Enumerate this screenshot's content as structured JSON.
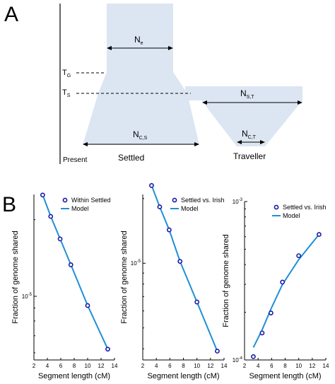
{
  "panel_a": {
    "letter": "A",
    "labels": {
      "ne": {
        "main": "N",
        "sub": "e"
      },
      "tg": {
        "main": "T",
        "sub": "G"
      },
      "ts": {
        "main": "T",
        "sub": "S"
      },
      "nst": {
        "main": "N",
        "sub": "S,T"
      },
      "ncs": {
        "main": "N",
        "sub": "C,S"
      },
      "nct": {
        "main": "N",
        "sub": "C,T"
      },
      "present": "Present",
      "settled": "Settled",
      "traveller": "Traveller"
    },
    "colors": {
      "fill": "#dce6f2",
      "line": "#000000"
    }
  },
  "panel_b": {
    "letter": "B"
  },
  "chart_data": [
    {
      "type": "scatter",
      "title": "",
      "xlabel": "Segment length (cM)",
      "ylabel": "Fraction of genome shared",
      "xlim": [
        2,
        14
      ],
      "xticks": [
        2,
        4,
        6,
        8,
        10,
        12,
        14
      ],
      "yscale": "log",
      "yticks": [
        {
          "value": 1e-05,
          "base": "10",
          "exp": "-5"
        }
      ],
      "ylim_log10": [
        -5.25,
        -4.6
      ],
      "series": [
        {
          "name": "Within Settled",
          "kind": "points",
          "x": [
            3.3,
            4.5,
            5.9,
            7.5,
            10.0,
            13.0
          ],
          "y": [
            2.5e-05,
            2.06e-05,
            1.68e-05,
            1.33e-05,
            9.2e-06,
            6.2e-06
          ]
        },
        {
          "name": "Model",
          "kind": "line",
          "x": [
            3.3,
            4.5,
            5.9,
            7.5,
            10.0,
            13.0
          ],
          "y": [
            2.5e-05,
            2.06e-05,
            1.68e-05,
            1.33e-05,
            9.2e-06,
            6.2e-06
          ]
        }
      ],
      "legend": "top-right",
      "colors": {
        "marker": "#1a1aa6",
        "line": "#1f8fd6"
      }
    },
    {
      "type": "scatter",
      "title": "",
      "xlabel": "Segment length (cM)",
      "ylabel": "Fraction of genome shared",
      "xlim": [
        2,
        14
      ],
      "xticks": [
        2,
        4,
        6,
        8,
        10,
        12,
        14
      ],
      "yscale": "log",
      "yticks": [
        {
          "value": 1e-05,
          "base": "10",
          "exp": "-5"
        }
      ],
      "ylim_log10": [
        -5.45,
        -4.68
      ],
      "series": [
        {
          "name": "Settled vs. Irish",
          "kind": "points",
          "x": [
            3.3,
            4.5,
            5.9,
            7.5,
            10.0,
            13.0
          ],
          "y": [
            2.3e-05,
            1.83e-05,
            1.43e-05,
            1.02e-05,
            6.6e-06,
            3.9e-06
          ]
        },
        {
          "name": "Model",
          "kind": "line",
          "x": [
            3.3,
            4.5,
            5.9,
            7.5,
            10.0,
            13.0
          ],
          "y": [
            2.3e-05,
            1.83e-05,
            1.43e-05,
            1.02e-05,
            6.6e-06,
            3.9e-06
          ]
        }
      ],
      "legend": "top-right",
      "colors": {
        "marker": "#1a1aa6",
        "line": "#1f8fd6"
      }
    },
    {
      "type": "scatter",
      "title": "",
      "xlabel": "Segment length (cM)",
      "ylabel": "Fraction of genome shared",
      "xlim": [
        2,
        14
      ],
      "xticks": [
        2,
        4,
        6,
        8,
        10,
        12,
        14
      ],
      "yscale": "log",
      "yticks": [
        {
          "value": 0.0001,
          "base": "10",
          "exp": "-4"
        },
        {
          "value": 0.001,
          "base": "10",
          "exp": "-3"
        }
      ],
      "ylim_log10": [
        -4,
        -3
      ],
      "series": [
        {
          "name": "Settled vs. Irish",
          "kind": "points",
          "x": [
            3.3,
            4.6,
            5.9,
            7.6,
            10.0,
            13.0
          ],
          "y": [
            0.000105,
            0.000148,
            0.000198,
            0.00031,
            0.000455,
            0.00062
          ]
        },
        {
          "name": "Model",
          "kind": "line",
          "x": [
            3.3,
            4.6,
            5.9,
            7.6,
            10.0,
            13.0
          ],
          "y": [
            0.00012,
            0.000155,
            0.00021,
            0.0003,
            0.00043,
            0.00062
          ]
        }
      ],
      "legend": "top-right",
      "colors": {
        "marker": "#1a1aa6",
        "line": "#1f8fd6"
      }
    }
  ]
}
